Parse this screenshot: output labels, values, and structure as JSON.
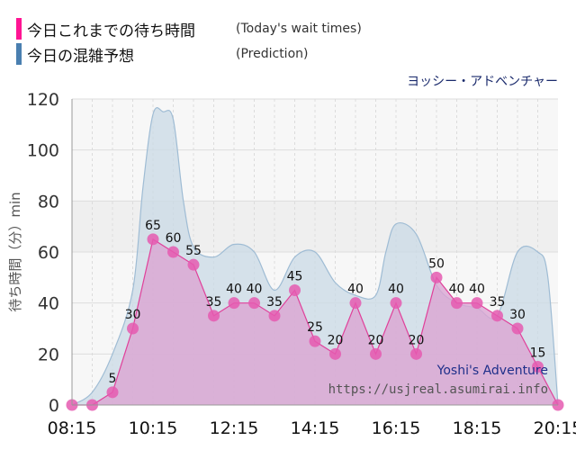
{
  "legend": {
    "actual_label": "今日これまでの待ち時間",
    "actual_en": "(Today's wait times)",
    "actual_color": "#ff1493",
    "prediction_label": "今日の混雑予想",
    "prediction_en": "(Prediction)",
    "prediction_color": "#4a7fb0"
  },
  "attraction_name": "ヨッシー・アドベンチャー",
  "watermark": {
    "title": "Yoshi's Adventure",
    "url": "https://usjreal.asumirai.info"
  },
  "chart_data": {
    "type": "area",
    "ylabel": "待ち時間（分）min",
    "ylim": [
      0,
      120
    ],
    "y_ticks": [
      "0",
      "20",
      "40",
      "60",
      "80",
      "100",
      "120"
    ],
    "x_ticks": [
      "08:15",
      "10:15",
      "12:15",
      "14:15",
      "16:15",
      "18:15",
      "20:15"
    ],
    "x_range": [
      "08:15",
      "20:15"
    ],
    "grid": true,
    "series": [
      {
        "key": "actual",
        "color": "#e0409a",
        "points": [
          {
            "x": "08:15",
            "y": 0
          },
          {
            "x": "08:45",
            "y": 0
          },
          {
            "x": "09:15",
            "y": 5
          },
          {
            "x": "09:45",
            "y": 30
          },
          {
            "x": "10:15",
            "y": 65
          },
          {
            "x": "10:45",
            "y": 60
          },
          {
            "x": "11:15",
            "y": 55
          },
          {
            "x": "11:45",
            "y": 35
          },
          {
            "x": "12:15",
            "y": 40
          },
          {
            "x": "12:45",
            "y": 40
          },
          {
            "x": "13:15",
            "y": 35
          },
          {
            "x": "13:45",
            "y": 45
          },
          {
            "x": "14:15",
            "y": 25
          },
          {
            "x": "14:45",
            "y": 20
          },
          {
            "x": "15:15",
            "y": 40
          },
          {
            "x": "15:45",
            "y": 20
          },
          {
            "x": "16:15",
            "y": 40
          },
          {
            "x": "16:45",
            "y": 20
          },
          {
            "x": "17:15",
            "y": 50
          },
          {
            "x": "17:45",
            "y": 40
          },
          {
            "x": "18:15",
            "y": 40
          },
          {
            "x": "18:45",
            "y": 35
          },
          {
            "x": "19:15",
            "y": 30
          },
          {
            "x": "19:45",
            "y": 15
          },
          {
            "x": "20:15",
            "y": 0
          }
        ],
        "labels": [
          "",
          "",
          "5",
          "30",
          "65",
          "60",
          "55",
          "35",
          "40",
          "40",
          "35",
          "45",
          "25",
          "20",
          "40",
          "20",
          "40",
          "20",
          "50",
          "40",
          "40",
          "35",
          "30",
          "15",
          ""
        ]
      },
      {
        "key": "prediction",
        "color": "#9fbcd4",
        "points": [
          {
            "x": "08:15",
            "y": 0
          },
          {
            "x": "08:45",
            "y": 5
          },
          {
            "x": "09:15",
            "y": 20
          },
          {
            "x": "09:45",
            "y": 45
          },
          {
            "x": "10:00",
            "y": 85
          },
          {
            "x": "10:15",
            "y": 114
          },
          {
            "x": "10:30",
            "y": 115
          },
          {
            "x": "10:45",
            "y": 112
          },
          {
            "x": "11:00",
            "y": 80
          },
          {
            "x": "11:15",
            "y": 62
          },
          {
            "x": "11:45",
            "y": 58
          },
          {
            "x": "12:15",
            "y": 63
          },
          {
            "x": "12:45",
            "y": 60
          },
          {
            "x": "13:15",
            "y": 45
          },
          {
            "x": "13:45",
            "y": 58
          },
          {
            "x": "14:15",
            "y": 60
          },
          {
            "x": "14:45",
            "y": 48
          },
          {
            "x": "15:15",
            "y": 43
          },
          {
            "x": "15:45",
            "y": 43
          },
          {
            "x": "16:00",
            "y": 60
          },
          {
            "x": "16:15",
            "y": 71
          },
          {
            "x": "16:45",
            "y": 67
          },
          {
            "x": "17:15",
            "y": 47
          },
          {
            "x": "17:45",
            "y": 40
          },
          {
            "x": "18:15",
            "y": 38
          },
          {
            "x": "18:45",
            "y": 35
          },
          {
            "x": "19:15",
            "y": 60
          },
          {
            "x": "19:45",
            "y": 60
          },
          {
            "x": "20:00",
            "y": 50
          },
          {
            "x": "20:15",
            "y": 0
          }
        ]
      }
    ]
  }
}
